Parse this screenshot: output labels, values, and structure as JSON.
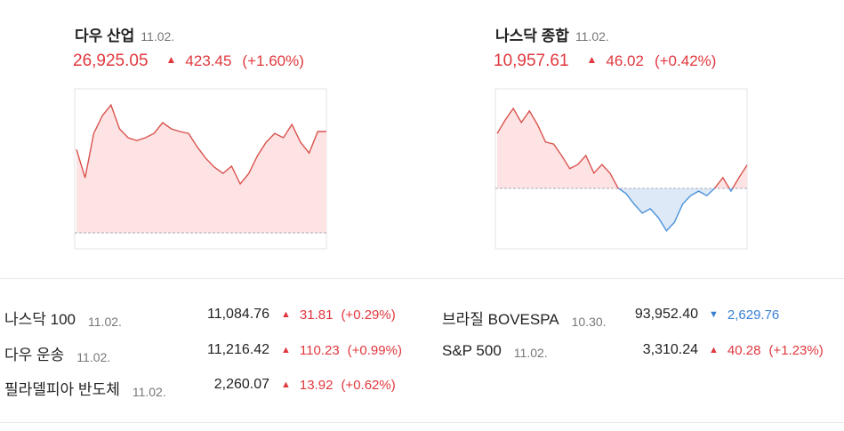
{
  "indices": [
    {
      "name": "다우 산업",
      "date": "11.02.",
      "value": "26,925.05",
      "direction": "up",
      "change": "423.45",
      "percent": "(+1.60%)",
      "chart": {
        "type": "line",
        "ylim": [
          26435,
          27103
        ],
        "baseline": 26501.6,
        "values": [
          26850,
          26732,
          26917,
          26991,
          27036,
          26936,
          26899,
          26887,
          26899,
          26917,
          26962,
          26936,
          26925,
          26917,
          26861,
          26813,
          26776,
          26750,
          26780,
          26706,
          26750,
          26824,
          26880,
          26917,
          26899,
          26954,
          26880,
          26835,
          26925,
          26925
        ]
      }
    },
    {
      "name": "나스닥 종합",
      "date": "11.02.",
      "value": "10,957.61",
      "direction": "up",
      "change": "46.02",
      "percent": "(+0.42%)",
      "chart": {
        "type": "line",
        "ylim": [
          10791,
          11110
        ],
        "baseline": 10911.59,
        "values": [
          11021,
          11048,
          11071,
          11043,
          11066,
          11039,
          11004,
          11000,
          10977,
          10951,
          10959,
          10977,
          10942,
          10959,
          10942,
          10912,
          10901,
          10880,
          10862,
          10871,
          10853,
          10827,
          10844,
          10880,
          10897,
          10906,
          10897,
          10912,
          10933,
          10906,
          10933,
          10958
        ]
      }
    }
  ],
  "table": {
    "left": [
      {
        "name": "나스닥 100",
        "date": "11.02.",
        "value": "11,084.76",
        "direction": "up",
        "change": "31.81",
        "percent": "(+0.29%)"
      },
      {
        "name": "다우 운송",
        "date": "11.02.",
        "value": "11,216.42",
        "direction": "up",
        "change": "110.23",
        "percent": "(+0.99%)"
      },
      {
        "name": "필라델피아 반도체",
        "date": "11.02.",
        "value": "2,260.07",
        "direction": "up",
        "change": "13.92",
        "percent": "(+0.62%)"
      }
    ],
    "right": [
      {
        "name": "브라질 BOVESPA",
        "date": "10.30.",
        "value": "93,952.40",
        "direction": "down",
        "change": "2,629.76"
      },
      {
        "name": "S&P 500",
        "date": "11.02.",
        "value": "3,310.24",
        "direction": "up",
        "change": "40.28",
        "percent": "(+1.23%)"
      }
    ]
  }
}
